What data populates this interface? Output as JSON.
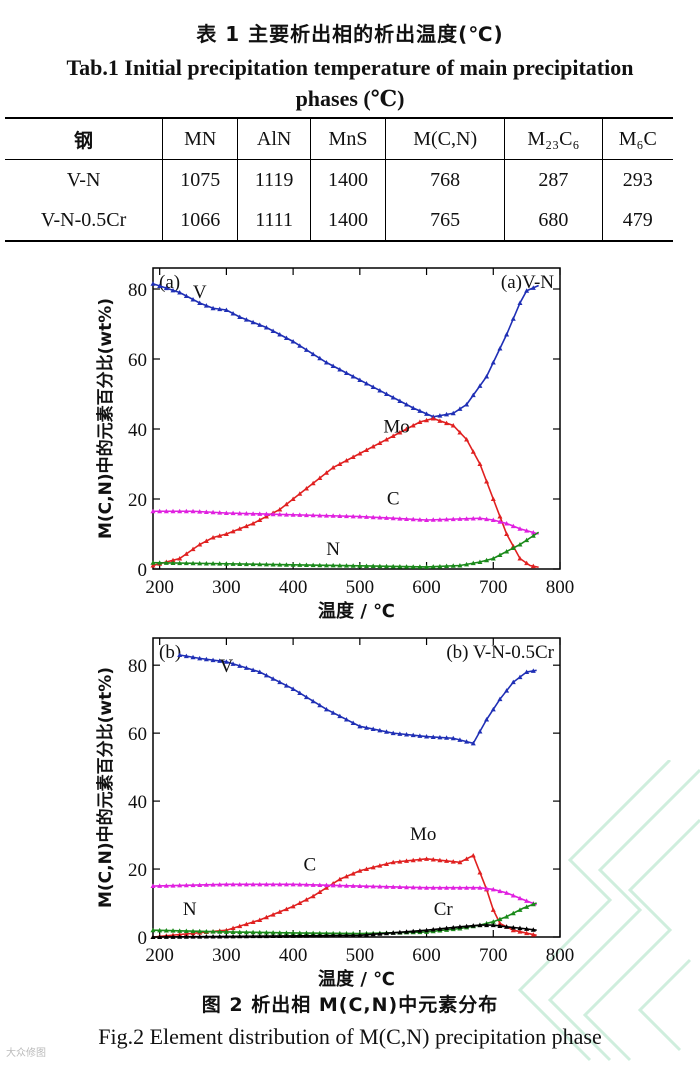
{
  "table": {
    "title_cn": "表 1  主要析出相的析出温度(℃)",
    "title_en": "Tab.1  Initial precipitation temperature of main precipitation phases (℃)",
    "headers": [
      "钢",
      "MN",
      "AlN",
      "MnS",
      "M(C,N)",
      "M₂₃C₆",
      "M₆C"
    ],
    "rows": [
      [
        "V-N",
        "1075",
        "1119",
        "1400",
        "768",
        "287",
        "293"
      ],
      [
        "V-N-0.5Cr",
        "1066",
        "1111",
        "1400",
        "765",
        "680",
        "479"
      ]
    ]
  },
  "chart_data": [
    {
      "type": "line",
      "panel_label": "(a)",
      "title": "(a)V-N",
      "xlabel": "温度 / ℃",
      "ylabel": "M(C,N)中的元素百分比(wt%)",
      "xlim": [
        190,
        800
      ],
      "ylim": [
        0,
        86
      ],
      "xticks": [
        200,
        300,
        400,
        500,
        600,
        700,
        800
      ],
      "yticks": [
        0,
        20,
        40,
        60,
        80
      ],
      "colors": {
        "V": "#1f2fb5",
        "Mo": "#e02020",
        "C": "#e020e0",
        "N": "#1a8a1a"
      },
      "series": [
        {
          "name": "V",
          "color": "#1f2fb5",
          "points": [
            [
              190,
              81.5
            ],
            [
              230,
              79
            ],
            [
              260,
              76
            ],
            [
              280,
              74.5
            ],
            [
              300,
              74
            ],
            [
              320,
              72
            ],
            [
              360,
              69
            ],
            [
              400,
              65
            ],
            [
              450,
              59
            ],
            [
              500,
              54
            ],
            [
              550,
              49
            ],
            [
              580,
              46
            ],
            [
              610,
              43.5
            ],
            [
              640,
              44.5
            ],
            [
              660,
              47
            ],
            [
              690,
              55
            ],
            [
              720,
              67
            ],
            [
              740,
              76
            ],
            [
              750,
              79.5
            ],
            [
              768,
              81
            ]
          ]
        },
        {
          "name": "Mo",
          "color": "#e02020",
          "points": [
            [
              190,
              1
            ],
            [
              230,
              3
            ],
            [
              260,
              7
            ],
            [
              280,
              9
            ],
            [
              300,
              10
            ],
            [
              340,
              13
            ],
            [
              380,
              17
            ],
            [
              420,
              23
            ],
            [
              460,
              29
            ],
            [
              500,
              33
            ],
            [
              540,
              37
            ],
            [
              570,
              40
            ],
            [
              590,
              42
            ],
            [
              610,
              43
            ],
            [
              640,
              41
            ],
            [
              660,
              37
            ],
            [
              680,
              30
            ],
            [
              700,
              20
            ],
            [
              720,
              10
            ],
            [
              740,
              3
            ],
            [
              755,
              1
            ],
            [
              768,
              0.5
            ]
          ]
        },
        {
          "name": "C",
          "color": "#e020e0",
          "points": [
            [
              190,
              16.5
            ],
            [
              250,
              16.5
            ],
            [
              300,
              16
            ],
            [
              400,
              15.5
            ],
            [
              500,
              15
            ],
            [
              600,
              14
            ],
            [
              680,
              14.5
            ],
            [
              700,
              14
            ],
            [
              720,
              13
            ],
            [
              740,
              11.5
            ],
            [
              768,
              10
            ]
          ]
        },
        {
          "name": "N",
          "color": "#1a8a1a",
          "points": [
            [
              190,
              1.8
            ],
            [
              300,
              1.5
            ],
            [
              400,
              1.2
            ],
            [
              500,
              0.9
            ],
            [
              600,
              0.6
            ],
            [
              650,
              1
            ],
            [
              680,
              2
            ],
            [
              700,
              3
            ],
            [
              720,
              5
            ],
            [
              740,
              7
            ],
            [
              768,
              10.5
            ]
          ]
        }
      ],
      "annotations": [
        {
          "text": "V",
          "x": 260,
          "y": 77.5
        },
        {
          "text": "Mo",
          "x": 555,
          "y": 39
        },
        {
          "text": "C",
          "x": 550,
          "y": 18.5
        },
        {
          "text": "N",
          "x": 460,
          "y": 4
        }
      ]
    },
    {
      "type": "line",
      "panel_label": "(b)",
      "title": "(b) V-N-0.5Cr",
      "xlabel": "温度 / ℃",
      "ylabel": "M(C,N)中的元素百分比(wt%)",
      "xlim": [
        190,
        800
      ],
      "ylim": [
        0,
        88
      ],
      "xticks": [
        200,
        300,
        400,
        500,
        600,
        700,
        800
      ],
      "yticks": [
        0,
        20,
        40,
        60,
        80
      ],
      "colors": {
        "V": "#1f2fb5",
        "Mo": "#e02020",
        "C": "#e020e0",
        "N": "#1a8a1a",
        "Cr": "#000000"
      },
      "series": [
        {
          "name": "V",
          "color": "#1f2fb5",
          "points": [
            [
              230,
              83
            ],
            [
              260,
              82
            ],
            [
              300,
              81
            ],
            [
              350,
              78
            ],
            [
              400,
              73
            ],
            [
              450,
              67
            ],
            [
              500,
              62
            ],
            [
              550,
              60
            ],
            [
              600,
              59
            ],
            [
              640,
              58.5
            ],
            [
              660,
              57.5
            ],
            [
              670,
              57
            ],
            [
              690,
              64
            ],
            [
              710,
              70
            ],
            [
              730,
              75
            ],
            [
              750,
              78
            ],
            [
              765,
              78.5
            ]
          ]
        },
        {
          "name": "Mo",
          "color": "#e02020",
          "points": [
            [
              190,
              0
            ],
            [
              300,
              2
            ],
            [
              350,
              5
            ],
            [
              400,
              9
            ],
            [
              430,
              12
            ],
            [
              470,
              17
            ],
            [
              500,
              19.5
            ],
            [
              550,
              22
            ],
            [
              600,
              23
            ],
            [
              650,
              22
            ],
            [
              670,
              24
            ],
            [
              680,
              19
            ],
            [
              690,
              14
            ],
            [
              700,
              8
            ],
            [
              710,
              4
            ],
            [
              730,
              2
            ],
            [
              765,
              0.5
            ]
          ]
        },
        {
          "name": "C",
          "color": "#e020e0",
          "points": [
            [
              190,
              15
            ],
            [
              300,
              15.5
            ],
            [
              400,
              15.5
            ],
            [
              500,
              15
            ],
            [
              600,
              14.5
            ],
            [
              680,
              14.5
            ],
            [
              700,
              14
            ],
            [
              720,
              13
            ],
            [
              745,
              11
            ],
            [
              765,
              9.5
            ]
          ]
        },
        {
          "name": "N",
          "color": "#1a8a1a",
          "points": [
            [
              190,
              2
            ],
            [
              300,
              1.5
            ],
            [
              400,
              1.2
            ],
            [
              500,
              1
            ],
            [
              600,
              1.5
            ],
            [
              650,
              2.5
            ],
            [
              680,
              3.5
            ],
            [
              700,
              4.5
            ],
            [
              720,
              6
            ],
            [
              745,
              8.5
            ],
            [
              765,
              10
            ]
          ]
        },
        {
          "name": "Cr",
          "color": "#000000",
          "points": [
            [
              190,
              0
            ],
            [
              500,
              0.5
            ],
            [
              600,
              2
            ],
            [
              650,
              3
            ],
            [
              680,
              3.5
            ],
            [
              700,
              3.5
            ],
            [
              720,
              3
            ],
            [
              745,
              2.5
            ],
            [
              765,
              2
            ]
          ]
        }
      ],
      "annotations": [
        {
          "text": "V",
          "x": 300,
          "y": 78
        },
        {
          "text": "Mo",
          "x": 595,
          "y": 28.5
        },
        {
          "text": "C",
          "x": 425,
          "y": 19.5
        },
        {
          "text": "N",
          "x": 245,
          "y": 6.5
        },
        {
          "text": "Cr",
          "x": 625,
          "y": 6.5
        }
      ]
    }
  ],
  "captions": {
    "cn": "图 2  析出相 M(C,N)中元素分布",
    "en": "Fig.2  Element distribution of M(C,N) precipitation phase"
  },
  "logo_text": "大众修图"
}
